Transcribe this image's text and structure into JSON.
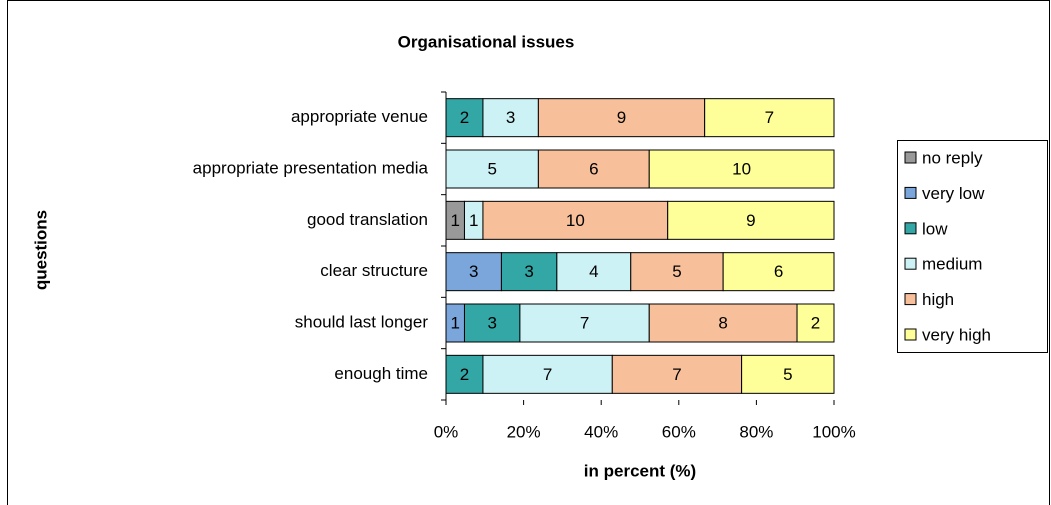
{
  "chart_data": {
    "type": "bar",
    "orientation": "horizontal",
    "stacking": "percent",
    "title": "Organisational issues",
    "x_label": "in percent (%)",
    "y_label": "questions",
    "categories": [
      "appropriate venue",
      "appropriate presentation media",
      "good translation",
      "clear structure",
      "should last longer",
      "enough time"
    ],
    "series": [
      {
        "name": "no reply",
        "color": "#999999",
        "values": [
          null,
          null,
          1,
          null,
          null,
          null
        ]
      },
      {
        "name": "very low",
        "color": "#7aa6dc",
        "values": [
          null,
          null,
          null,
          3,
          1,
          null
        ]
      },
      {
        "name": "low",
        "color": "#33a6a6",
        "values": [
          2,
          null,
          null,
          3,
          3,
          2
        ]
      },
      {
        "name": "medium",
        "color": "#ccf2f5",
        "values": [
          3,
          5,
          1,
          4,
          7,
          7
        ]
      },
      {
        "name": "high",
        "color": "#f7c09a",
        "values": [
          9,
          6,
          10,
          5,
          8,
          7
        ]
      },
      {
        "name": "very high",
        "color": "#ffff99",
        "values": [
          7,
          10,
          9,
          6,
          2,
          5
        ]
      }
    ],
    "xlim": [
      0,
      100
    ],
    "xticks": [
      {
        "value": 0,
        "label": "0%"
      },
      {
        "value": 20,
        "label": "20%"
      },
      {
        "value": 40,
        "label": "40%"
      },
      {
        "value": 60,
        "label": "60%"
      },
      {
        "value": 80,
        "label": "80%"
      },
      {
        "value": 100,
        "label": "100%"
      }
    ],
    "legend": "right"
  }
}
